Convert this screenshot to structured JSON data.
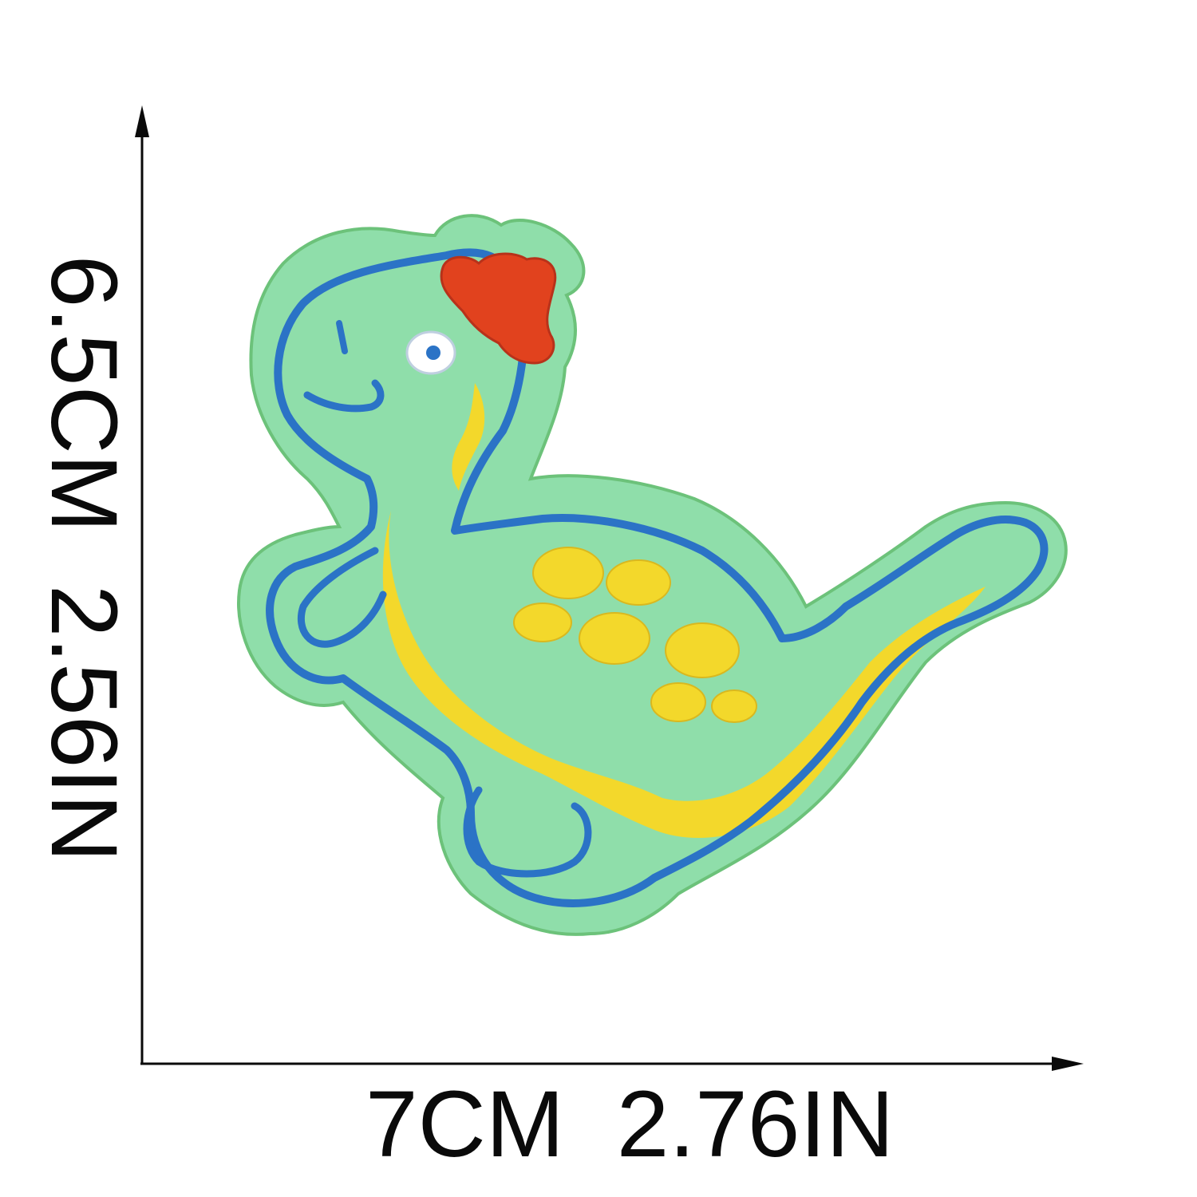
{
  "dimensions": {
    "width_label": "7CM  2.76IN",
    "height_label": "6.5CM  2.56IN"
  },
  "colors": {
    "felt": "#8fdeaa",
    "felt_edge": "#6cc27a",
    "outline": "#2b73c6",
    "belly": "#f3d82b",
    "crest": "#e1421e",
    "text": "#0a0a0a"
  }
}
